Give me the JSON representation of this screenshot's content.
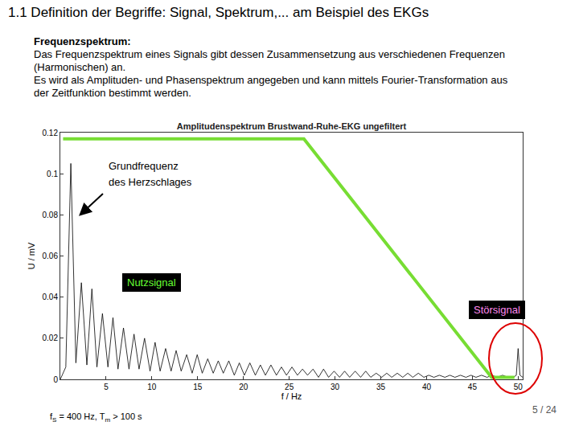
{
  "slide": {
    "heading": "1.1 Definition der Begriffe: Signal, Spektrum,... am Beispiel des EKGs",
    "subheading": "Frequenzspektrum:",
    "paragraphs": [
      "Das Frequenzspektrum eines Signals gibt dessen Zusammensetzung aus verschiedenen Frequenzen (Harmonischen) an.",
      "Es wird als Amplituden- und Phasenspektrum angegeben und kann mittels Fourier-Transformation aus der Zeitfunktion bestimmt werden."
    ],
    "annotations": {
      "arrow_label": "Grundfrequenz des Herzschlages",
      "box_useful": "Nutzsignal",
      "box_noise": "Störsignal"
    },
    "footer": [
      {
        "text": "f"
      },
      {
        "sub": "S"
      },
      {
        "text": " = 400 Hz, T"
      },
      {
        "sub": "m"
      },
      {
        "text": " > 100 s"
      }
    ],
    "page": "5 / 24"
  },
  "filter_line": {
    "x": [
      0.3,
      26.6,
      47.1,
      49.6
    ],
    "values": [
      0.117,
      0.117,
      0.001,
      0.001
    ],
    "color": "#77dd33"
  },
  "chart_data": {
    "type": "line",
    "title": "Amplitudenspektrum Brustwand-Ruhe-EKG ungefiltert",
    "x_label": "f / Hz",
    "y_label": "U / mV",
    "color": "#000000",
    "grid": false,
    "xlim": [
      0,
      50.5
    ],
    "xticks": [
      5,
      10,
      15,
      20,
      25,
      30,
      35,
      40,
      45,
      50
    ],
    "ylim": [
      0,
      0.12
    ],
    "yticks": [
      0,
      0.02,
      0.04,
      0.06,
      0.08,
      0.1,
      0.12
    ],
    "x": [
      0,
      0.6,
      1.15,
      1.7,
      2.3,
      2.9,
      3.45,
      4.0,
      4.6,
      5.2,
      5.75,
      6.3,
      6.9,
      7.5,
      8.05,
      8.6,
      9.2,
      9.8,
      10.35,
      10.9,
      11.5,
      12.1,
      12.65,
      13.2,
      13.8,
      14.4,
      14.95,
      15.5,
      16.1,
      16.7,
      17.25,
      17.8,
      18.4,
      19.0,
      19.55,
      20.1,
      20.7,
      21.3,
      21.85,
      22.4,
      23.0,
      23.6,
      24.15,
      24.7,
      25.3,
      25.9,
      26.45,
      27.0,
      27.6,
      28.2,
      28.75,
      29.3,
      29.9,
      30.5,
      31.05,
      31.6,
      32.2,
      32.8,
      33.35,
      33.9,
      34.5,
      35.1,
      35.65,
      36.2,
      36.8,
      37.4,
      37.95,
      38.5,
      39.1,
      39.7,
      40.25,
      40.8,
      41.4,
      42.0,
      42.55,
      43.1,
      43.7,
      44.3,
      44.85,
      45.4,
      46.0,
      46.6,
      47.15,
      47.7,
      48.3,
      48.9,
      49.5,
      49.8,
      50.0,
      50.2,
      50.5
    ],
    "values": [
      0,
      0.006,
      0.105,
      0.008,
      0.047,
      0.007,
      0.044,
      0.006,
      0.032,
      0.006,
      0.03,
      0.005,
      0.025,
      0.005,
      0.022,
      0.005,
      0.02,
      0.004,
      0.018,
      0.004,
      0.015,
      0.004,
      0.014,
      0.004,
      0.012,
      0.003,
      0.012,
      0.003,
      0.01,
      0.003,
      0.009,
      0.003,
      0.009,
      0.002,
      0.008,
      0.002,
      0.008,
      0.002,
      0.007,
      0.002,
      0.007,
      0.002,
      0.006,
      0.002,
      0.006,
      0.002,
      0.005,
      0.002,
      0.005,
      0.001,
      0.005,
      0.001,
      0.004,
      0.001,
      0.004,
      0.001,
      0.004,
      0.001,
      0.004,
      0.001,
      0.003,
      0.001,
      0.003,
      0.001,
      0.003,
      0.001,
      0.003,
      0.001,
      0.003,
      0.001,
      0.002,
      0.001,
      0.002,
      0.001,
      0.002,
      0.001,
      0.002,
      0.001,
      0.002,
      0.001,
      0.002,
      0.001,
      0.002,
      0.001,
      0.002,
      0.001,
      0.001,
      0.002,
      0.015,
      0.002,
      0.001
    ]
  }
}
